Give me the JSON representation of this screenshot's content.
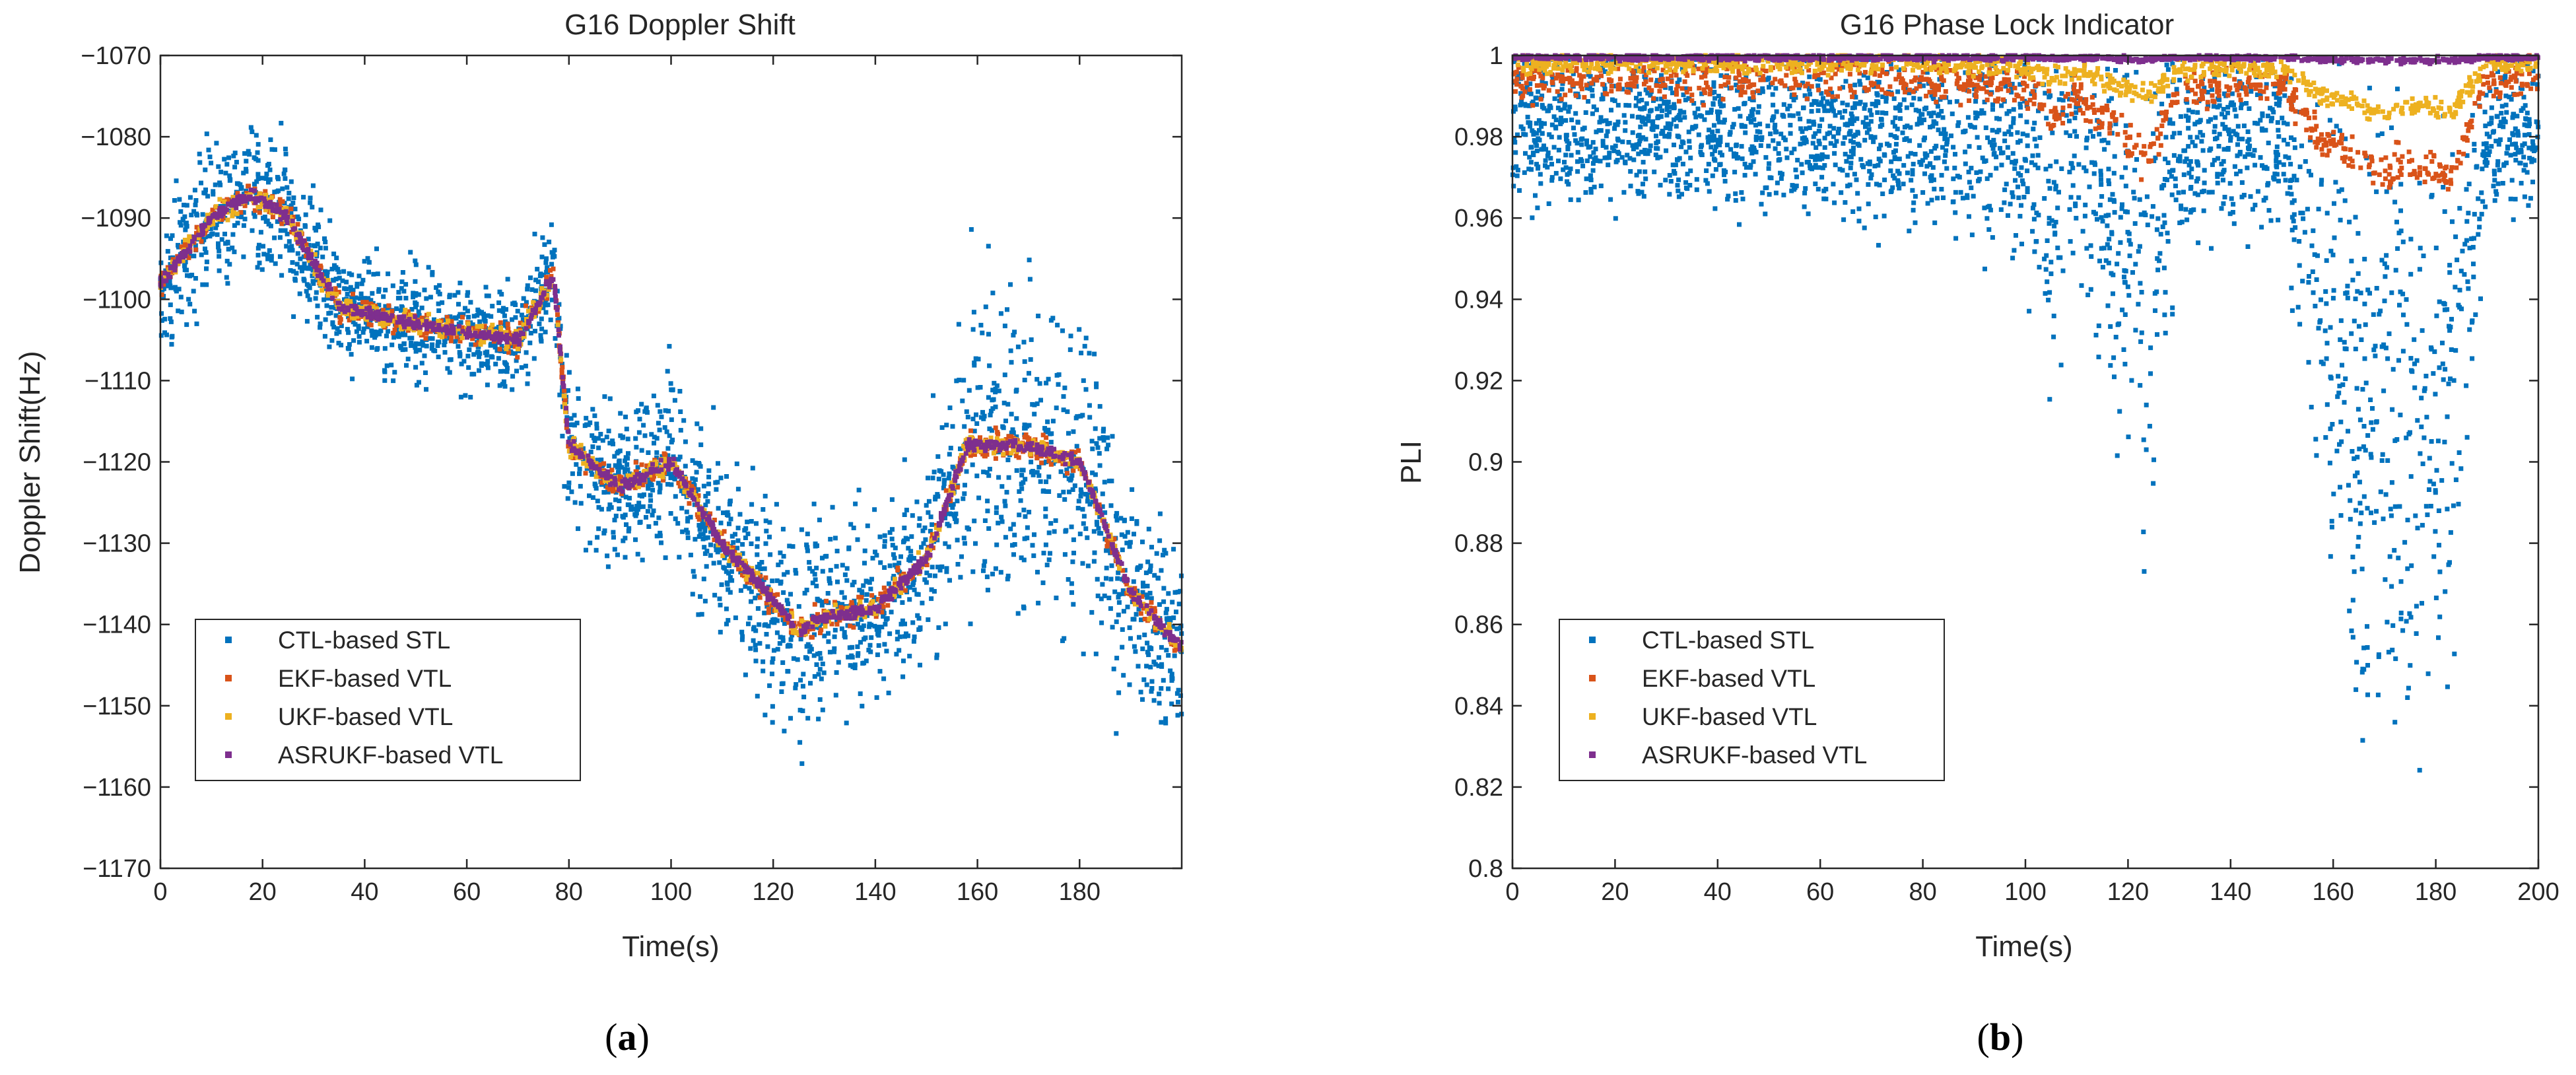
{
  "chart_data": [
    {
      "panel": "(a)",
      "type": "scatter",
      "title": "G16 Doppler Shift",
      "xlabel": "Time(s)",
      "ylabel": "Doppler Shift(Hz)",
      "xlim": [
        0,
        200
      ],
      "ylim": [
        -1170,
        -1070
      ],
      "xticks": [
        0,
        20,
        40,
        60,
        80,
        100,
        120,
        140,
        160,
        180
      ],
      "yticks": [
        -1070,
        -1080,
        -1090,
        -1100,
        -1110,
        -1120,
        -1130,
        -1140,
        -1150,
        -1160,
        -1170
      ],
      "grid": false,
      "legend_position": "bottom-left",
      "series": [
        {
          "name": "CTL-based STL",
          "color": "#0072BD",
          "x": [
            0,
            10,
            18,
            25,
            35,
            50,
            70,
            77,
            80,
            90,
            100,
            110,
            120,
            125,
            130,
            140,
            150,
            158,
            170,
            180,
            190,
            200
          ],
          "center": [
            -1098,
            -1090,
            -1087,
            -1090,
            -1101,
            -1103,
            -1105,
            -1097,
            -1118,
            -1123,
            -1120,
            -1130,
            -1137,
            -1141,
            -1139,
            -1138,
            -1132,
            -1118,
            -1118,
            -1120,
            -1136,
            -1143
          ],
          "spread": [
            8,
            10,
            10,
            9,
            7,
            7,
            7,
            8,
            10,
            10,
            11,
            12,
            13,
            16,
            12,
            11,
            12,
            20,
            20,
            20,
            14,
            12
          ]
        },
        {
          "name": "EKF-based VTL",
          "color": "#D95319",
          "x": [
            0,
            10,
            18,
            25,
            35,
            50,
            70,
            77,
            80,
            90,
            100,
            110,
            120,
            125,
            130,
            140,
            150,
            158,
            170,
            180,
            190,
            200
          ],
          "values": [
            -1098,
            -1090,
            -1087,
            -1090,
            -1101,
            -1103,
            -1105,
            -1097,
            -1118,
            -1123,
            -1120,
            -1130,
            -1137,
            -1141,
            -1139,
            -1138,
            -1132,
            -1118,
            -1118,
            -1120,
            -1136,
            -1143
          ]
        },
        {
          "name": "UKF-based VTL",
          "color": "#EDB120",
          "x": [
            0,
            10,
            18,
            25,
            35,
            50,
            70,
            77,
            80,
            90,
            100,
            110,
            120,
            125,
            130,
            140,
            150,
            158,
            170,
            180,
            190,
            200
          ],
          "values": [
            -1098,
            -1090,
            -1087,
            -1090,
            -1101,
            -1103,
            -1105,
            -1097,
            -1118,
            -1123,
            -1120,
            -1130,
            -1137,
            -1141,
            -1139,
            -1138,
            -1132,
            -1118,
            -1118,
            -1120,
            -1136,
            -1143
          ]
        },
        {
          "name": "ASRUKF-based VTL",
          "color": "#7E2F8E",
          "x": [
            0,
            10,
            18,
            25,
            35,
            50,
            70,
            77,
            80,
            90,
            100,
            110,
            120,
            125,
            130,
            140,
            150,
            158,
            170,
            180,
            190,
            200
          ],
          "values": [
            -1098,
            -1090,
            -1087,
            -1090,
            -1101,
            -1103,
            -1105,
            -1097,
            -1118,
            -1123,
            -1120,
            -1130,
            -1137,
            -1141,
            -1139,
            -1138,
            -1132,
            -1118,
            -1118,
            -1120,
            -1136,
            -1143
          ]
        }
      ]
    },
    {
      "panel": "(b)",
      "type": "scatter",
      "title": "G16 Phase Lock Indicator",
      "xlabel": "Time(s)",
      "ylabel": "PLI",
      "xlim": [
        0,
        200
      ],
      "ylim": [
        0.8,
        1.0
      ],
      "xticks": [
        0,
        20,
        40,
        60,
        80,
        100,
        120,
        140,
        160,
        180,
        200
      ],
      "yticks": [
        "1",
        "0.98",
        "0.96",
        "0.94",
        "0.92",
        "0.9",
        "0.88",
        "0.86",
        "0.84",
        "0.82",
        "0.8"
      ],
      "grid": false,
      "legend_position": "bottom-left",
      "series": [
        {
          "name": "CTL-based STL",
          "color": "#0072BD",
          "x": [
            0,
            40,
            80,
            100,
            105,
            110,
            124,
            130,
            150,
            158,
            165,
            170,
            175,
            183,
            190,
            200
          ],
          "center": [
            0.982,
            0.982,
            0.982,
            0.98,
            0.96,
            0.975,
            0.945,
            0.978,
            0.98,
            0.94,
            0.9,
            0.92,
            0.9,
            0.92,
            0.98,
            0.982
          ],
          "spread": [
            0.02,
            0.02,
            0.022,
            0.03,
            0.05,
            0.03,
            0.06,
            0.025,
            0.02,
            0.06,
            0.08,
            0.08,
            0.08,
            0.07,
            0.02,
            0.02
          ]
        },
        {
          "name": "EKF-based VTL",
          "color": "#D95319",
          "x": [
            0,
            40,
            80,
            100,
            105,
            110,
            124,
            130,
            150,
            158,
            165,
            170,
            175,
            183,
            190,
            200
          ],
          "values": [
            0.994,
            0.994,
            0.994,
            0.992,
            0.985,
            0.99,
            0.975,
            0.992,
            0.993,
            0.98,
            0.975,
            0.97,
            0.975,
            0.97,
            0.994,
            0.995
          ]
        },
        {
          "name": "UKF-based VTL",
          "color": "#EDB120",
          "x": [
            0,
            40,
            80,
            100,
            105,
            110,
            124,
            130,
            150,
            158,
            165,
            170,
            175,
            183,
            190,
            200
          ],
          "values": [
            0.998,
            0.998,
            0.998,
            0.997,
            0.994,
            0.996,
            0.99,
            0.997,
            0.997,
            0.99,
            0.988,
            0.985,
            0.988,
            0.986,
            0.998,
            0.998
          ]
        },
        {
          "name": "ASRUKF-based VTL",
          "color": "#7E2F8E",
          "x": [
            0,
            40,
            80,
            100,
            105,
            110,
            124,
            130,
            150,
            158,
            165,
            170,
            175,
            183,
            190,
            200
          ],
          "values": [
            0.9995,
            0.9995,
            0.9995,
            0.9995,
            0.9992,
            0.9995,
            0.999,
            0.9995,
            0.9995,
            0.999,
            0.9988,
            0.9988,
            0.9988,
            0.9988,
            0.9995,
            0.9995
          ]
        }
      ]
    }
  ],
  "captions": {
    "a": {
      "open": "(",
      "letter": "a",
      "close": ")"
    },
    "b": {
      "open": "(",
      "letter": "b",
      "close": ")"
    }
  }
}
